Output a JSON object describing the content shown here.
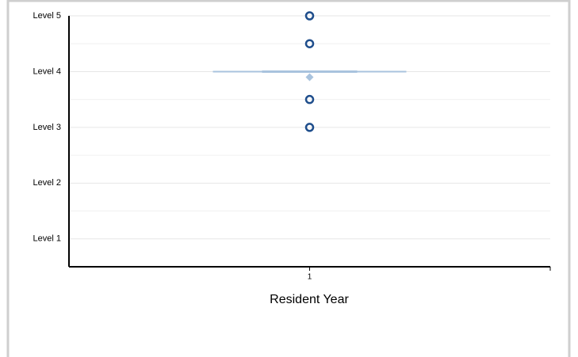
{
  "chart_data": {
    "type": "box",
    "x_label": "Resident Year",
    "xlim": [
      0.5,
      1.5
    ],
    "xticks": [
      1
    ],
    "ylim": [
      0.5,
      5
    ],
    "yticks": [
      {
        "value": 1,
        "label": "Level 1"
      },
      {
        "value": 2,
        "label": "Level 2"
      },
      {
        "value": 3,
        "label": "Level 3"
      },
      {
        "value": 4,
        "label": "Level 4"
      },
      {
        "value": 5,
        "label": "Level 5"
      }
    ],
    "minor_yticks": [
      1.5,
      2.5,
      3.5,
      4.5
    ],
    "grid": true,
    "series": [
      {
        "x": [
          1,
          1,
          1,
          1
        ],
        "values": [
          5,
          4.5,
          3.5,
          3
        ],
        "color": "#1f4e8c"
      }
    ],
    "box": {
      "x": 1,
      "median": 4,
      "mean": 3.9,
      "color": "#a9c3de"
    }
  }
}
